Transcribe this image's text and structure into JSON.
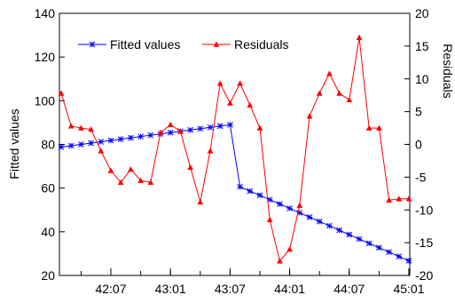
{
  "chart_data": {
    "type": "line",
    "title": "",
    "x_tick_labels": [
      "42:07",
      "43:01",
      "43:07",
      "44:01",
      "44:07",
      "45:01"
    ],
    "y_left": {
      "label": "Fitted values",
      "ticks": [
        20,
        40,
        60,
        80,
        100,
        120,
        140
      ],
      "ylim": [
        20,
        140
      ]
    },
    "y_right": {
      "label": "Residuals",
      "ticks": [
        -20,
        -15,
        -10,
        -5,
        0,
        5,
        10,
        15,
        20
      ],
      "ylim": [
        -20,
        20
      ]
    },
    "legend_position": "top-left",
    "series": [
      {
        "name": "Fitted values",
        "axis": "left",
        "color": "#0000ff",
        "marker": "asterisk",
        "values": [
          78.8,
          79.4,
          80.0,
          80.6,
          81.2,
          81.8,
          82.4,
          83.0,
          83.6,
          84.2,
          84.8,
          85.4,
          86.0,
          86.6,
          87.2,
          87.8,
          88.4,
          89.0,
          60.6,
          58.6,
          56.7,
          54.7,
          52.7,
          50.7,
          48.7,
          46.7,
          44.7,
          42.7,
          40.7,
          38.7,
          36.7,
          34.7,
          32.7,
          30.7,
          28.7,
          26.7
        ]
      },
      {
        "name": "Residuals",
        "axis": "right",
        "color": "#ff0000",
        "marker": "triangle",
        "values": [
          7.8,
          2.8,
          2.5,
          2.3,
          -1.0,
          -4.0,
          -5.8,
          -3.8,
          -5.5,
          -5.8,
          1.8,
          3.0,
          2.0,
          -3.5,
          -8.8,
          -1.0,
          9.3,
          6.3,
          9.3,
          6.0,
          2.5,
          -11.5,
          -17.8,
          -16.0,
          -9.3,
          4.3,
          7.8,
          10.8,
          7.8,
          6.8,
          16.3,
          2.5,
          2.5,
          -8.5,
          -8.3,
          -8.3
        ]
      }
    ]
  }
}
